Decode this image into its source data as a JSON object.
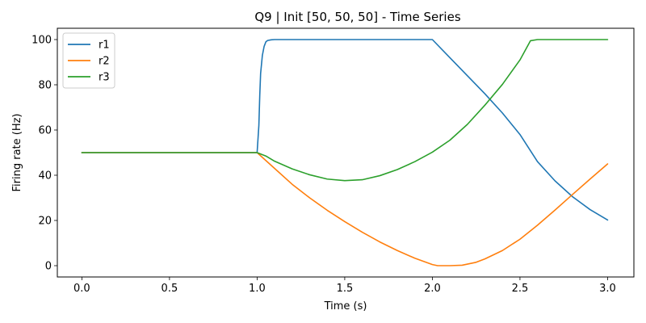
{
  "chart_data": {
    "type": "line",
    "title": "Q9 | Init [50, 50, 50] - Time Series",
    "xlabel": "Time (s)",
    "ylabel": "Firing rate (Hz)",
    "xlim": [
      -0.14,
      3.15
    ],
    "ylim": [
      -5,
      105
    ],
    "xticks": [
      0.0,
      0.5,
      1.0,
      1.5,
      2.0,
      2.5,
      3.0
    ],
    "xtick_labels": [
      "0.0",
      "0.5",
      "1.0",
      "1.5",
      "2.0",
      "2.5",
      "3.0"
    ],
    "yticks": [
      0,
      20,
      40,
      60,
      80,
      100
    ],
    "ytick_labels": [
      "0",
      "20",
      "40",
      "60",
      "80",
      "100"
    ],
    "grid": false,
    "legend_position": "top-left",
    "series": [
      {
        "name": "r1",
        "color": "#1f77b4",
        "x": [
          0,
          0.5,
          1.0,
          1.01,
          1.015,
          1.02,
          1.03,
          1.04,
          1.05,
          1.06,
          1.08,
          1.1,
          1.5,
          2.0,
          2.1,
          2.2,
          2.3,
          2.4,
          2.5,
          2.6,
          2.7,
          2.8,
          2.9,
          3.0
        ],
        "y": [
          50,
          50,
          50,
          62,
          75,
          85,
          93,
          97,
          99,
          99.6,
          99.9,
          100,
          100,
          100,
          92,
          84,
          76,
          67.5,
          58,
          46,
          37.5,
          30.5,
          24.8,
          20.2
        ]
      },
      {
        "name": "r2",
        "color": "#ff7f0e",
        "x": [
          0,
          0.5,
          1.0,
          1.1,
          1.2,
          1.3,
          1.4,
          1.5,
          1.6,
          1.7,
          1.8,
          1.9,
          2.0,
          2.03,
          2.1,
          2.17,
          2.25,
          2.3,
          2.4,
          2.5,
          2.6,
          2.7,
          2.8,
          2.9,
          3.0
        ],
        "y": [
          50,
          50,
          50,
          43,
          36,
          30,
          24.5,
          19.5,
          14.8,
          10.5,
          6.7,
          3.3,
          0.5,
          0,
          0,
          0.2,
          1.5,
          3,
          6.7,
          11.7,
          17.9,
          24.6,
          31.5,
          38.3,
          45
        ]
      },
      {
        "name": "r3",
        "color": "#2ca02c",
        "x": [
          0,
          0.5,
          1.0,
          1.05,
          1.1,
          1.2,
          1.3,
          1.4,
          1.5,
          1.6,
          1.7,
          1.8,
          1.9,
          2.0,
          2.1,
          2.2,
          2.3,
          2.4,
          2.5,
          2.56,
          2.6,
          2.8,
          3.0
        ],
        "y": [
          50,
          50,
          50,
          48.5,
          46.2,
          42.8,
          40.2,
          38.3,
          37.6,
          38,
          39.8,
          42.5,
          46,
          50.2,
          55.5,
          62.5,
          71,
          80.2,
          91,
          99.5,
          100,
          100,
          100
        ]
      }
    ]
  }
}
